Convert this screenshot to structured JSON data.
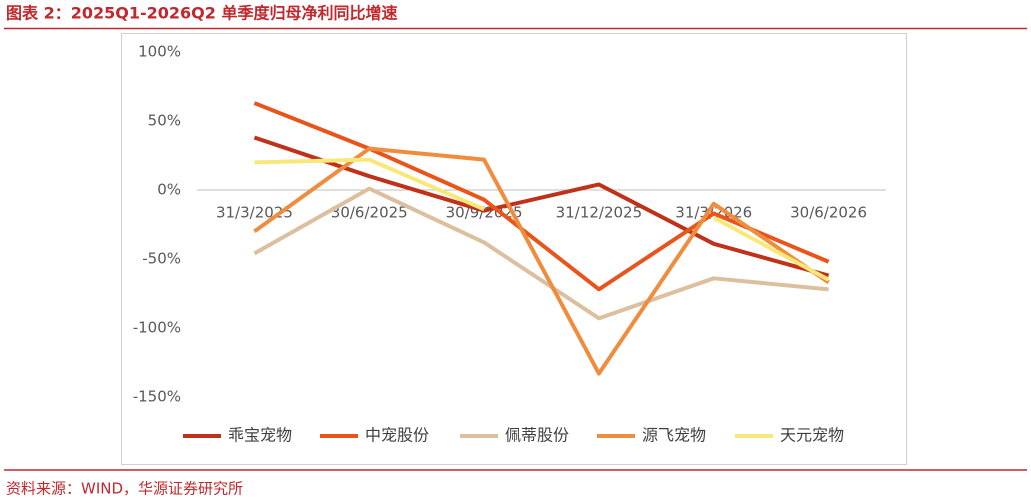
{
  "chart_data": {
    "type": "line",
    "title": "图表 2：2025Q1-2026Q2 单季度归母净利同比增速",
    "source": "资料来源：WIND，华源证券研究所",
    "categories": [
      "31/3/2025",
      "30/6/2025",
      "30/9/2025",
      "31/12/2025",
      "31/3/2026",
      "30/6/2026"
    ],
    "series": [
      {
        "name": "乖宝宠物",
        "color": "#c0311a",
        "values": [
          38,
          10,
          -15,
          4,
          -39,
          -62
        ]
      },
      {
        "name": "中宠股份",
        "color": "#e8541a",
        "values": [
          63,
          30,
          -7,
          -72,
          -17,
          -52
        ]
      },
      {
        "name": "佩蒂股份",
        "color": "#dcbf9f",
        "values": [
          -46,
          1,
          -38,
          -93,
          -64,
          -72
        ]
      },
      {
        "name": "源飞宠物",
        "color": "#f08c3e",
        "values": [
          -30,
          30,
          22,
          -133,
          -10,
          -67
        ]
      },
      {
        "name": "天元宠物",
        "color": "#f6e97a",
        "values": [
          20,
          22,
          -14,
          null,
          -20,
          -65
        ]
      }
    ],
    "ylim": [
      -150,
      100
    ],
    "yticks": [
      {
        "value": 100,
        "label": "100%"
      },
      {
        "value": 50,
        "label": "50%"
      },
      {
        "value": 0,
        "label": "0%"
      },
      {
        "value": -50,
        "label": "-50%"
      },
      {
        "value": -100,
        "label": "-100%"
      },
      {
        "value": -150,
        "label": "-150%"
      }
    ],
    "grid": false,
    "legend": "bottom"
  }
}
